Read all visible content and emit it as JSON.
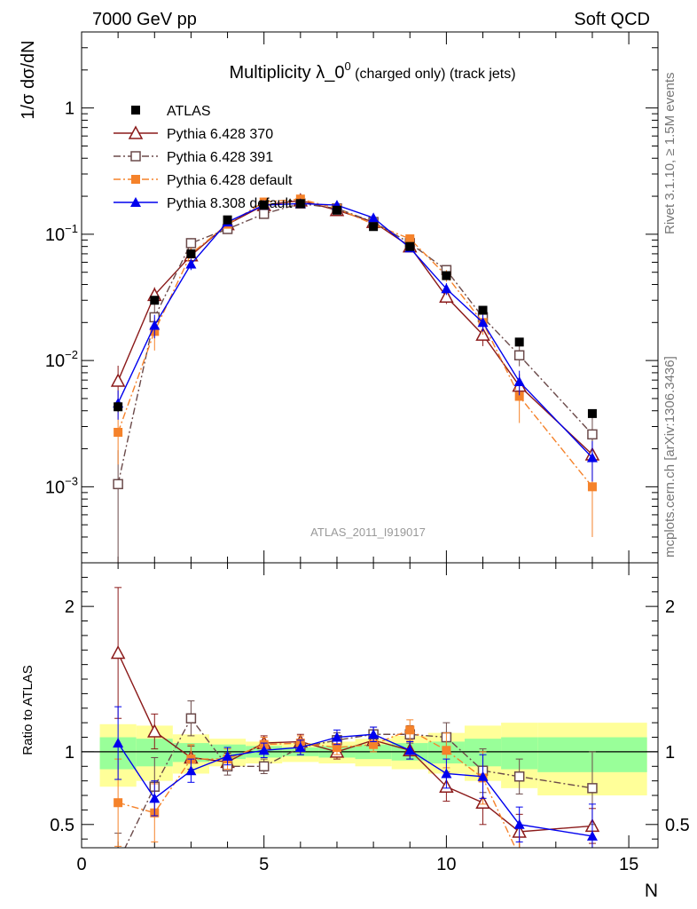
{
  "header": {
    "left": "7000 GeV pp",
    "right": "Soft QCD"
  },
  "side_labels": {
    "rivet": "Rivet 3.1.10, ≥ 1.5M events",
    "source": "mcplots.cern.ch [arXiv:1306.3436]"
  },
  "colors": {
    "atlas": "#000000",
    "p370": "#8b1a1a",
    "p391": "#6b4a4a",
    "pdef": "#f5822a",
    "p8": "#0000ee",
    "band_yellow": "#ffff99",
    "band_green": "#99ff99"
  },
  "chart_data": [
    {
      "type": "line",
      "title_main": "Multiplicity λ_0",
      "title_sup": "0",
      "title_rest": " (charged only) (track jets)",
      "ylabel": "1/σ dσ/dN",
      "yscale": "log",
      "xlim": [
        0,
        15.8
      ],
      "ylim": [
        0.00025,
        4
      ],
      "y_ticks": [
        {
          "value": 1,
          "label": "1"
        },
        {
          "value": 0.1,
          "label": "10",
          "sup": "−1"
        },
        {
          "value": 0.01,
          "label": "10",
          "sup": "−2"
        },
        {
          "value": 0.001,
          "label": "10",
          "sup": "−3"
        }
      ],
      "watermark": "ATLAS_2011_I919017",
      "legend": "top-left",
      "series": [
        {
          "name": "ATLAS",
          "key": "atlas",
          "marker": "square",
          "x": [
            1,
            2,
            3,
            4,
            5,
            6,
            7,
            8,
            9,
            10,
            11,
            12,
            14
          ],
          "y": [
            0.0043,
            0.03,
            0.07,
            0.13,
            0.17,
            0.175,
            0.155,
            0.115,
            0.08,
            0.047,
            0.025,
            0.014,
            0.0038
          ],
          "err": [
            0.0004,
            0.002,
            0.003,
            0.005,
            0.005,
            0.005,
            0.005,
            0.004,
            0.003,
            0.002,
            0.0015,
            0.001,
            0.0003
          ]
        },
        {
          "name": "Pythia 6.428 370",
          "key": "p370",
          "marker": "triangle-open",
          "x": [
            1,
            2,
            3,
            4,
            5,
            6,
            7,
            8,
            9,
            10,
            11,
            12,
            14
          ],
          "y": [
            0.0069,
            0.033,
            0.068,
            0.12,
            0.17,
            0.185,
            0.155,
            0.125,
            0.08,
            0.032,
            0.016,
            0.0063,
            0.0018
          ],
          "err": [
            0.0022,
            0.005,
            0.007,
            0.008,
            0.009,
            0.009,
            0.008,
            0.007,
            0.006,
            0.004,
            0.003,
            0.0015,
            0.0007
          ]
        },
        {
          "name": "Pythia 6.428 391",
          "key": "p391",
          "marker": "square-open",
          "x": [
            1,
            2,
            3,
            4,
            5,
            6,
            7,
            8,
            9,
            10,
            11,
            12,
            14
          ],
          "y": [
            0.00105,
            0.022,
            0.085,
            0.11,
            0.145,
            0.175,
            0.16,
            0.125,
            0.085,
            0.052,
            0.022,
            0.011,
            0.0026
          ],
          "err": [
            0.0009,
            0.006,
            0.008,
            0.007,
            0.008,
            0.009,
            0.008,
            0.007,
            0.007,
            0.005,
            0.004,
            0.002,
            0.0009
          ]
        },
        {
          "name": "Pythia 6.428 default",
          "key": "pdef",
          "marker": "square",
          "x": [
            1,
            2,
            3,
            4,
            5,
            6,
            7,
            8,
            9,
            10,
            11,
            12,
            14
          ],
          "y": [
            0.0027,
            0.017,
            0.07,
            0.12,
            0.18,
            0.19,
            0.16,
            0.12,
            0.092,
            0.047,
            0.02,
            0.0052,
            0.001
          ],
          "err": [
            0.0012,
            0.005,
            0.008,
            0.008,
            0.009,
            0.009,
            0.008,
            0.007,
            0.007,
            0.005,
            0.004,
            0.002,
            0.0006
          ]
        },
        {
          "name": "Pythia 8.308 default",
          "key": "p8",
          "marker": "triangle",
          "x": [
            1,
            2,
            3,
            4,
            5,
            6,
            7,
            8,
            9,
            10,
            11,
            12,
            14
          ],
          "y": [
            0.0046,
            0.019,
            0.058,
            0.125,
            0.17,
            0.175,
            0.17,
            0.135,
            0.078,
            0.037,
            0.02,
            0.0068,
            0.0017
          ],
          "err": [
            0.0012,
            0.004,
            0.006,
            0.007,
            0.008,
            0.008,
            0.008,
            0.007,
            0.005,
            0.004,
            0.003,
            0.0015,
            0.0006
          ]
        }
      ]
    },
    {
      "type": "line",
      "ylabel": "Ratio to ATLAS",
      "xlabel": "N",
      "xlim": [
        0,
        15.8
      ],
      "ylim": [
        0.34,
        2.3
      ],
      "x_ticks": [
        0,
        5,
        10,
        15
      ],
      "y_ticks": [
        0.5,
        1,
        2
      ],
      "reference": 1,
      "band": {
        "edges": [
          0.5,
          1.5,
          2.5,
          3.5,
          4.5,
          5.5,
          6.5,
          7.5,
          8.5,
          9.5,
          10.5,
          11.5,
          12.5,
          15.5
        ],
        "yellow": [
          [
            0.76,
            1.19
          ],
          [
            0.8,
            1.18
          ],
          [
            0.85,
            1.12
          ],
          [
            0.9,
            1.09
          ],
          [
            0.92,
            1.07
          ],
          [
            0.93,
            1.06
          ],
          [
            0.92,
            1.07
          ],
          [
            0.9,
            1.09
          ],
          [
            0.88,
            1.11
          ],
          [
            0.85,
            1.13
          ],
          [
            0.8,
            1.18
          ],
          [
            0.75,
            1.2
          ],
          [
            0.7,
            1.2
          ]
        ],
        "green": [
          [
            0.88,
            1.1
          ],
          [
            0.9,
            1.09
          ],
          [
            0.93,
            1.06
          ],
          [
            0.95,
            1.05
          ],
          [
            0.96,
            1.04
          ],
          [
            0.97,
            1.03
          ],
          [
            0.96,
            1.04
          ],
          [
            0.95,
            1.05
          ],
          [
            0.94,
            1.06
          ],
          [
            0.92,
            1.07
          ],
          [
            0.9,
            1.09
          ],
          [
            0.88,
            1.1
          ],
          [
            0.86,
            1.1
          ]
        ]
      },
      "series": [
        {
          "name": "Pythia 6.428 370",
          "key": "p370",
          "marker": "triangle-open",
          "x": [
            1,
            2,
            3,
            4,
            5,
            6,
            7,
            8,
            9,
            10,
            11,
            12,
            14
          ],
          "y": [
            1.68,
            1.14,
            0.96,
            0.93,
            1.06,
            1.07,
            1.0,
            1.08,
            1.01,
            0.76,
            0.65,
            0.45,
            0.49
          ],
          "err": [
            0.45,
            0.12,
            0.08,
            0.06,
            0.05,
            0.05,
            0.05,
            0.05,
            0.06,
            0.1,
            0.15,
            0.12,
            0.12
          ]
        },
        {
          "name": "Pythia 6.428 391",
          "key": "p391",
          "marker": "square-open",
          "x": [
            1,
            2,
            3,
            4,
            5,
            6,
            7,
            8,
            9,
            10,
            11,
            12,
            14
          ],
          "y": [
            0.24,
            0.76,
            1.23,
            0.9,
            0.9,
            1.03,
            1.08,
            1.12,
            1.12,
            1.1,
            0.87,
            0.83,
            0.75
          ],
          "err": [
            0.2,
            0.2,
            0.12,
            0.06,
            0.05,
            0.05,
            0.05,
            0.05,
            0.06,
            0.1,
            0.15,
            0.12,
            0.25
          ]
        },
        {
          "name": "Pythia 6.428 default",
          "key": "pdef",
          "marker": "square",
          "x": [
            1,
            2,
            3,
            4,
            5,
            6,
            7,
            8,
            9,
            10,
            11,
            12,
            14
          ],
          "y": [
            0.65,
            0.58,
            0.95,
            0.95,
            1.05,
            1.06,
            1.03,
            1.05,
            1.15,
            1.01,
            0.82,
            0.28,
            0.26
          ],
          "err": [
            0.3,
            0.2,
            0.1,
            0.07,
            0.05,
            0.05,
            0.05,
            0.05,
            0.07,
            0.12,
            0.18,
            0.2,
            0.15
          ]
        },
        {
          "name": "Pythia 8.308 default",
          "key": "p8",
          "marker": "triangle",
          "x": [
            1,
            2,
            3,
            4,
            5,
            6,
            7,
            8,
            9,
            10,
            11,
            12,
            14
          ],
          "y": [
            1.06,
            0.68,
            0.87,
            0.97,
            1.01,
            1.03,
            1.1,
            1.12,
            1.01,
            0.85,
            0.83,
            0.5,
            0.42
          ],
          "err": [
            0.25,
            0.12,
            0.08,
            0.06,
            0.05,
            0.05,
            0.05,
            0.05,
            0.06,
            0.1,
            0.15,
            0.12,
            0.22
          ]
        }
      ]
    }
  ]
}
